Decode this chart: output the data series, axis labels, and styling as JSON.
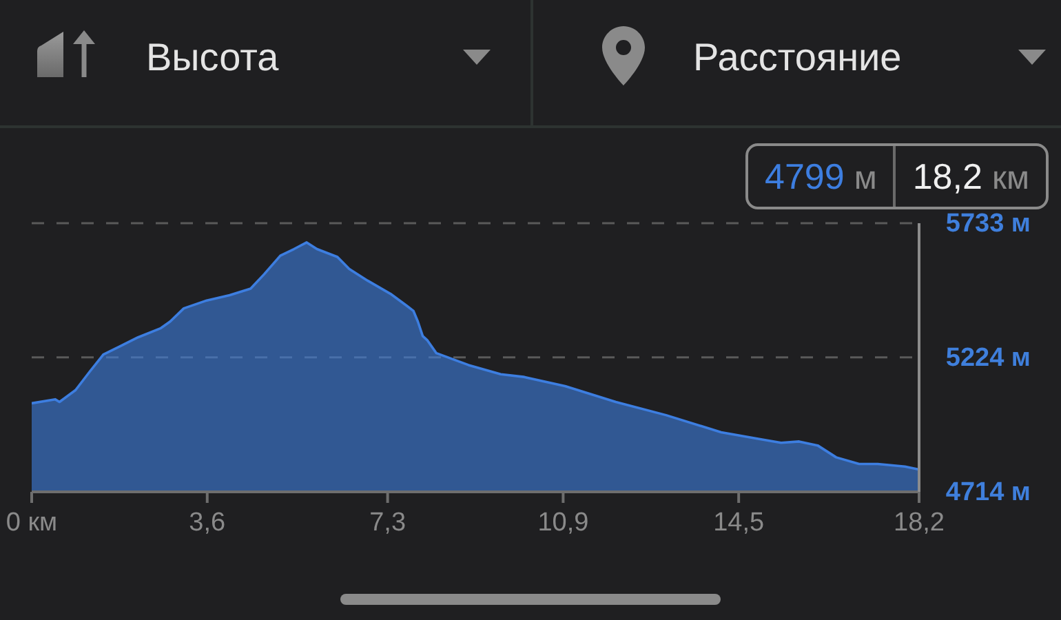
{
  "chart_data": {
    "type": "area",
    "xlabel": "Расстояние",
    "ylabel": "Высота",
    "annotations": [
      "4799 м",
      "18,2 км"
    ],
    "x": [
      0,
      0.48,
      0.57,
      0.9,
      1.19,
      1.47,
      1.8,
      2.18,
      2.65,
      2.84,
      3.12,
      3.59,
      4.06,
      4.49,
      4.77,
      5.1,
      5.38,
      5.64,
      5.85,
      6.27,
      6.51,
      6.89,
      7.36,
      7.69,
      7.83,
      7.92,
      8.02,
      8.11,
      8.3,
      8.96,
      9.62,
      10.09,
      10.94,
      11.98,
      13.01,
      14.14,
      14.9,
      15.37,
      15.74,
      16.12,
      16.5,
      16.97,
      17.35,
      17.91,
      18.2
    ],
    "series": [
      {
        "color": "#3d7ee0",
        "values": [
          5050,
          5065,
          5055,
          5100,
          5170,
          5235,
          5265,
          5300,
          5335,
          5360,
          5410,
          5440,
          5460,
          5485,
          5540,
          5610,
          5635,
          5660,
          5635,
          5605,
          5560,
          5515,
          5465,
          5420,
          5400,
          5360,
          5305,
          5290,
          5240,
          5195,
          5160,
          5150,
          5115,
          5055,
          5005,
          4940,
          4915,
          4900,
          4905,
          4890,
          4845,
          4820,
          4820,
          4810,
          4799
        ]
      }
    ],
    "xlim": [
      0,
      18.2
    ],
    "xticks": [
      {
        "value": 0,
        "label": "0 км"
      },
      {
        "value": 3.6,
        "label": "3,6"
      },
      {
        "value": 7.3,
        "label": "7,3"
      },
      {
        "value": 10.9,
        "label": "10,9"
      },
      {
        "value": 14.5,
        "label": "14,5"
      },
      {
        "value": 18.2,
        "label": "18,2"
      }
    ],
    "ylim": [
      4714,
      5733
    ],
    "yticks": [
      {
        "value": 4714,
        "label": "4714 м"
      },
      {
        "value": 5224,
        "label": "5224 м"
      },
      {
        "value": 5733,
        "label": "5733 м"
      }
    ],
    "grid": "y"
  }
}
